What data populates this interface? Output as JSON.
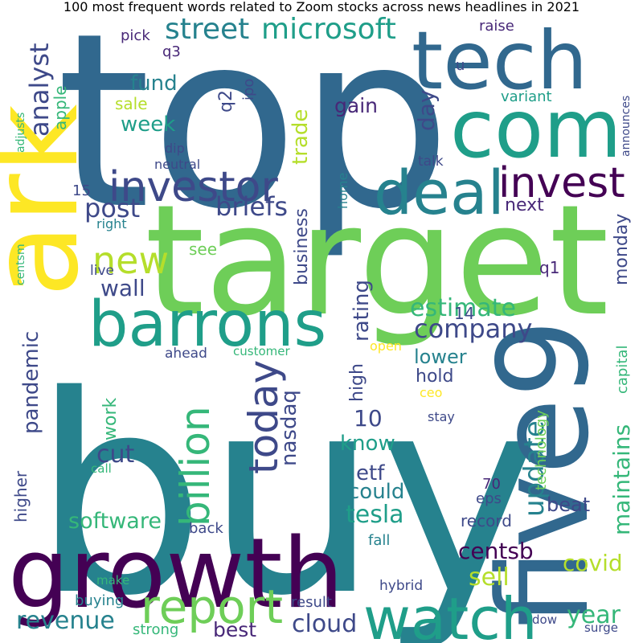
{
  "title": "100 most frequent words related to Zoom stocks across news headlines in 2021",
  "palette": {
    "p0": "#440154",
    "p1": "#482878",
    "p2": "#3e4989",
    "p3": "#31688e",
    "p4": "#26828e",
    "p5": "#1f9e89",
    "p6": "#35b779",
    "p7": "#6ece58",
    "p8": "#b5de2b",
    "p9": "#fde725"
  },
  "words": [
    {
      "text": "top",
      "color": "#31688e"
    },
    {
      "text": "buy",
      "color": "#26828e"
    },
    {
      "text": "target",
      "color": "#6ece58"
    },
    {
      "text": "tech",
      "color": "#31688e"
    },
    {
      "text": "com",
      "color": "#1f9e89"
    },
    {
      "text": "ark",
      "color": "#fde725"
    },
    {
      "text": "growth",
      "color": "#440154"
    },
    {
      "text": "five9",
      "color": "#31688e"
    },
    {
      "text": "barrons",
      "color": "#1f9e89"
    },
    {
      "text": "deal",
      "color": "#26828e"
    },
    {
      "text": "watch",
      "color": "#1f9e89"
    },
    {
      "text": "investor",
      "color": "#3e4989"
    },
    {
      "text": "invest",
      "color": "#440154"
    },
    {
      "text": "report",
      "color": "#6ece58"
    },
    {
      "text": "new",
      "color": "#b5de2b"
    },
    {
      "text": "billion",
      "color": "#35b779"
    },
    {
      "text": "today",
      "color": "#3e4989"
    },
    {
      "text": "street",
      "color": "#26828e"
    },
    {
      "text": "microsoft",
      "color": "#1f9e89"
    },
    {
      "text": "analyst",
      "color": "#3e4989"
    },
    {
      "text": "post",
      "color": "#3e4989"
    },
    {
      "text": "wall",
      "color": "#3e4989"
    },
    {
      "text": "company",
      "color": "#3e4989"
    },
    {
      "text": "estimate",
      "color": "#35b779"
    },
    {
      "text": "briefs",
      "color": "#3e4989"
    },
    {
      "text": "week",
      "color": "#1f9e89"
    },
    {
      "text": "fund",
      "color": "#26828e"
    },
    {
      "text": "cut",
      "color": "#3e4989"
    },
    {
      "text": "revenue",
      "color": "#26828e"
    },
    {
      "text": "cloud",
      "color": "#3e4989"
    },
    {
      "text": "update",
      "color": "#26828e"
    },
    {
      "text": "maintains",
      "color": "#35b779"
    },
    {
      "text": "tesla",
      "color": "#1f9e89"
    },
    {
      "text": "software",
      "color": "#35b779"
    },
    {
      "text": "centsb",
      "color": "#440154"
    },
    {
      "text": "year",
      "color": "#35b779"
    },
    {
      "text": "sell",
      "color": "#b5de2b"
    },
    {
      "text": "covid",
      "color": "#b5de2b"
    },
    {
      "text": "pandemic",
      "color": "#3e4989"
    },
    {
      "text": "rating",
      "color": "#3e4989"
    },
    {
      "text": "trade",
      "color": "#b5de2b"
    },
    {
      "text": "business",
      "color": "#3e4989"
    },
    {
      "text": "nasdaq",
      "color": "#3e4989"
    },
    {
      "text": "day",
      "color": "#3e4989"
    },
    {
      "text": "gain",
      "color": "#482878"
    },
    {
      "text": "monday",
      "color": "#3e4989"
    },
    {
      "text": "10",
      "color": "#3e4989"
    },
    {
      "text": "know",
      "color": "#1f9e89"
    },
    {
      "text": "etf",
      "color": "#3e4989"
    },
    {
      "text": "could",
      "color": "#26828e"
    },
    {
      "text": "best",
      "color": "#482878"
    },
    {
      "text": "work",
      "color": "#35b779"
    },
    {
      "text": "high",
      "color": "#3e4989"
    },
    {
      "text": "hold",
      "color": "#3e4989"
    },
    {
      "text": "lower",
      "color": "#26828e"
    },
    {
      "text": "beat",
      "color": "#3e4989"
    },
    {
      "text": "next",
      "color": "#482878"
    },
    {
      "text": "apple",
      "color": "#35b779"
    },
    {
      "text": "q2",
      "color": "#3e4989"
    },
    {
      "text": "sale",
      "color": "#b5de2b"
    },
    {
      "text": "see",
      "color": "#6ece58"
    },
    {
      "text": "buying",
      "color": "#26828e"
    },
    {
      "text": "strong",
      "color": "#35b779"
    },
    {
      "text": "capital",
      "color": "#35b779"
    },
    {
      "text": "higher",
      "color": "#3e4989"
    },
    {
      "text": "record",
      "color": "#3e4989"
    },
    {
      "text": "technology",
      "color": "#6ece58"
    },
    {
      "text": "result",
      "color": "#3e4989"
    },
    {
      "text": "back",
      "color": "#3e4989"
    },
    {
      "text": "pick",
      "color": "#482878"
    },
    {
      "text": "raise",
      "color": "#482878"
    },
    {
      "text": "q3",
      "color": "#482878"
    },
    {
      "text": "u",
      "color": "#3e4989"
    },
    {
      "text": "ipo",
      "color": "#3e4989"
    },
    {
      "text": "variant",
      "color": "#1f9e89"
    },
    {
      "text": "announces",
      "color": "#3e4989"
    },
    {
      "text": "adjusts",
      "color": "#35b779"
    },
    {
      "text": "dip",
      "color": "#3e4989"
    },
    {
      "text": "neutral",
      "color": "#3e4989"
    },
    {
      "text": "talk",
      "color": "#3e4989"
    },
    {
      "text": "15",
      "color": "#3e4989"
    },
    {
      "text": "right",
      "color": "#26828e"
    },
    {
      "text": "home",
      "color": "#26828e"
    },
    {
      "text": "centsm",
      "color": "#35b779"
    },
    {
      "text": "live",
      "color": "#3e4989"
    },
    {
      "text": "q1",
      "color": "#482878"
    },
    {
      "text": "14",
      "color": "#3e4989"
    },
    {
      "text": "ahead",
      "color": "#3e4989"
    },
    {
      "text": "customer",
      "color": "#35b779"
    },
    {
      "text": "open",
      "color": "#fde725"
    },
    {
      "text": "ceo",
      "color": "#fde725"
    },
    {
      "text": "stay",
      "color": "#3e4989"
    },
    {
      "text": "call",
      "color": "#35b779"
    },
    {
      "text": "70",
      "color": "#482878"
    },
    {
      "text": "eps",
      "color": "#3e4989"
    },
    {
      "text": "fall",
      "color": "#26828e"
    },
    {
      "text": "make",
      "color": "#35b779"
    },
    {
      "text": "hybrid",
      "color": "#3e4989"
    },
    {
      "text": "dow",
      "color": "#3e4989"
    },
    {
      "text": "surge",
      "color": "#3e4989"
    }
  ]
}
